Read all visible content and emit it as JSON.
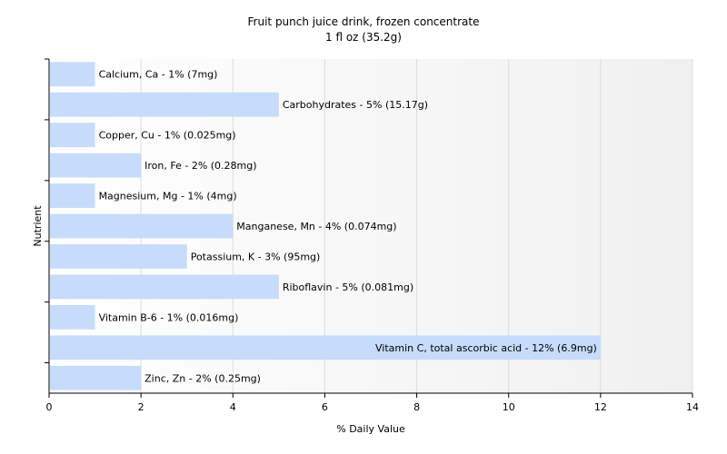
{
  "chart_data": {
    "type": "bar",
    "orientation": "horizontal",
    "title": "Fruit punch juice drink, frozen concentrate",
    "subtitle": "1 fl oz (35.2g)",
    "xlabel": "% Daily Value",
    "ylabel": "Nutrient",
    "xlim": [
      0,
      14
    ],
    "xticks": [
      "0",
      "2",
      "4",
      "6",
      "8",
      "10",
      "12",
      "14"
    ],
    "grid": true,
    "bar_color": "#c6dcfa",
    "categories": [
      "Calcium, Ca",
      "Carbohydrates",
      "Copper, Cu",
      "Iron, Fe",
      "Magnesium, Mg",
      "Manganese, Mn",
      "Potassium, K",
      "Riboflavin",
      "Vitamin B-6",
      "Vitamin C, total ascorbic acid",
      "Zinc, Zn"
    ],
    "values": [
      1,
      5,
      1,
      2,
      1,
      4,
      3,
      5,
      1,
      12,
      2
    ],
    "labels": [
      "Calcium, Ca - 1% (7mg)",
      "Carbohydrates - 5% (15.17g)",
      "Copper, Cu - 1% (0.025mg)",
      "Iron, Fe - 2% (0.28mg)",
      "Magnesium, Mg - 1% (4mg)",
      "Manganese, Mn - 4% (0.074mg)",
      "Potassium, K - 3% (95mg)",
      "Riboflavin - 5% (0.081mg)",
      "Vitamin B-6 - 1% (0.016mg)",
      "Vitamin C, total ascorbic acid - 12% (6.9mg)",
      "Zinc, Zn - 2% (0.25mg)"
    ]
  }
}
